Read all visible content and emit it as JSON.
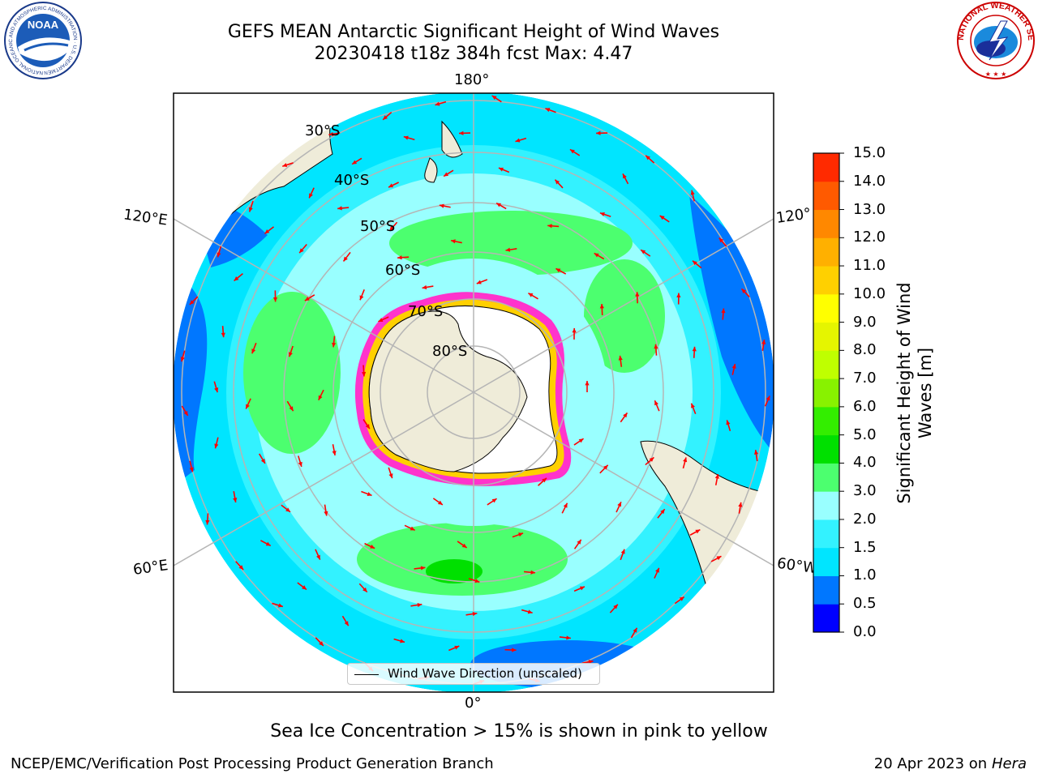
{
  "header": {
    "title_line1": "GEFS MEAN Antarctic Significant Height of Wind Waves",
    "title_line2": "20230418 t18z 384h fcst   Max: 4.47"
  },
  "logos": {
    "left": {
      "name": "noaa-logo",
      "text": "NOAA",
      "ring_text": "NATIONAL OCEANIC AND ATMOSPHERIC ADMINISTRATION · U.S. DEPARTMENT OF COMMERCE"
    },
    "right": {
      "name": "nws-logo",
      "ring_text": "NATIONAL WEATHER SERVICE"
    }
  },
  "map": {
    "projection": "south-polar-stereographic",
    "longitude_labels": [
      "180°",
      "120°E",
      "120°",
      "60°E",
      "60°W",
      "0°"
    ],
    "latitude_labels": [
      "30°S",
      "40°S",
      "50°S",
      "60°S",
      "70°S",
      "80°S"
    ],
    "field": "Significant Height of Wind Waves",
    "max_value": 4.47,
    "legend": "Wind Wave Direction (unscaled)"
  },
  "colorbar": {
    "label_line1": "Significant Height of Wind",
    "label_line2": "Waves [m]",
    "ticks": [
      "15.0",
      "14.0",
      "13.0",
      "12.0",
      "11.0",
      "10.0",
      "9.0",
      "8.0",
      "7.0",
      "6.0",
      "5.0",
      "4.0",
      "3.0",
      "2.0",
      "1.5",
      "1.0",
      "0.5",
      "0.0"
    ],
    "colors": [
      "#0000ff",
      "#0077ff",
      "#00e5ff",
      "#33f2ff",
      "#99ffff",
      "#4cff6f",
      "#00e000",
      "#33ee00",
      "#88f200",
      "#bfff00",
      "#e5f500",
      "#ffff00",
      "#ffd000",
      "#ffb000",
      "#ff8800",
      "#ff5a00",
      "#ff2a00",
      "#ff0000"
    ]
  },
  "colors": {
    "land": "#efecd9",
    "ice": "#ffffff",
    "grid": "#b5b5b5",
    "arrow": "#ff0000",
    "sea_ice_edge": "#ff33cc"
  },
  "footer": {
    "note": "Sea Ice Concentration > 15% is shown in pink to yellow",
    "credit_left": "NCEP/EMC/Verification Post Processing Product Generation Branch",
    "credit_right_date": "20 Apr 2023 on ",
    "credit_right_machine": "Hera"
  }
}
